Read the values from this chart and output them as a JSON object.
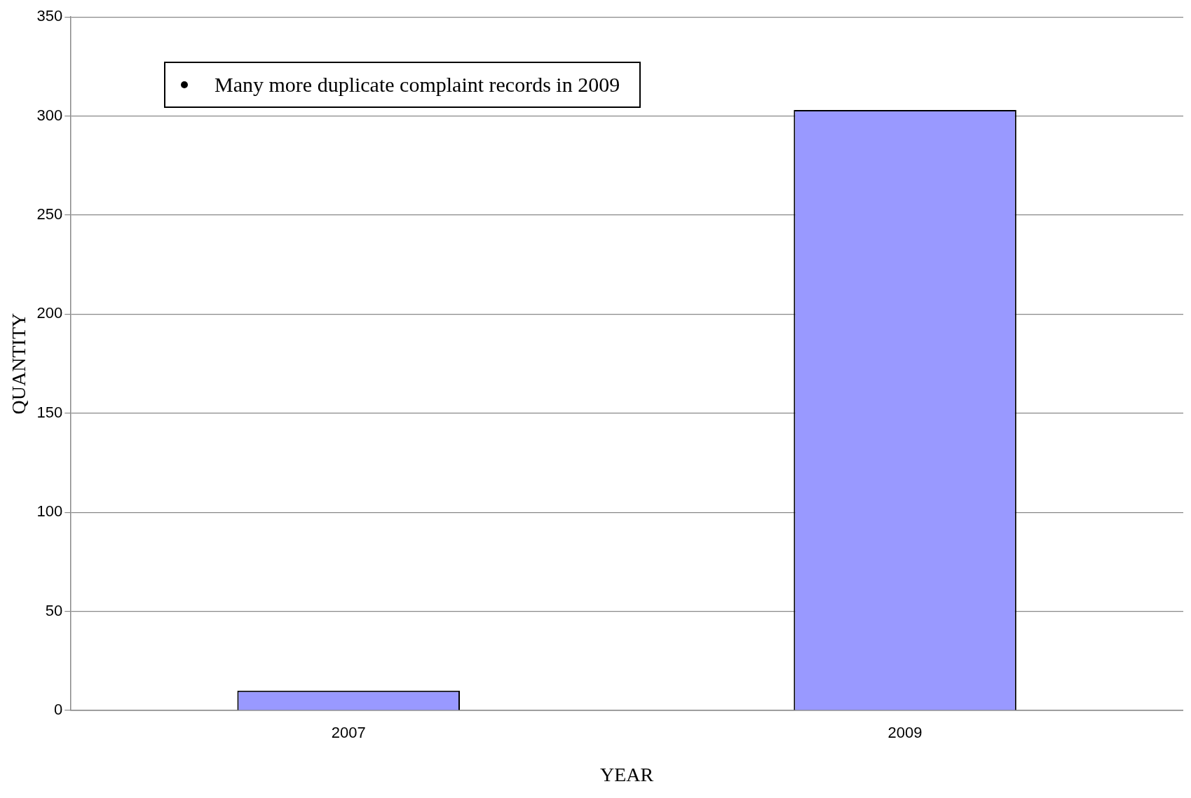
{
  "chart_data": {
    "type": "bar",
    "xlabel": "YEAR",
    "ylabel": "QUANTITY",
    "categories": [
      "2007",
      "2009"
    ],
    "series": [
      {
        "color": "#9999ff",
        "values": [
          10,
          303
        ]
      }
    ],
    "ylim": [
      0,
      350
    ],
    "yticks": [
      0,
      50,
      100,
      150,
      200,
      250,
      300,
      350
    ],
    "grid": "y",
    "legend": false,
    "annotations": [
      "Many more duplicate complaint records in 2009"
    ]
  }
}
